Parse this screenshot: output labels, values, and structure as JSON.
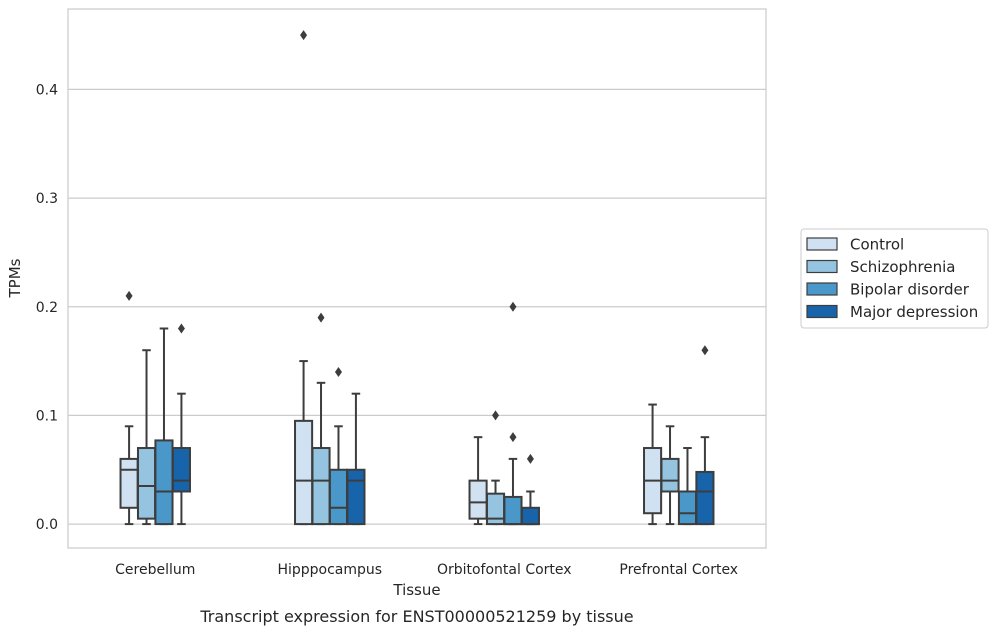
{
  "chart_data": {
    "type": "box",
    "title": "",
    "caption": "Transcript expression for ENST00000521259 by tissue",
    "xlabel": "Tissue",
    "ylabel": "TPMs",
    "ylim": [
      -0.022,
      0.474
    ],
    "yticks": [
      0.0,
      0.1,
      0.2,
      0.3,
      0.4
    ],
    "ytick_labels": [
      "0.0",
      "0.1",
      "0.2",
      "0.3",
      "0.4"
    ],
    "grid": "horizontal",
    "legend_position": "right",
    "categories": [
      "Cerebellum",
      "Hipppocampus",
      "Orbitofontal Cortex",
      "Prefrontal Cortex"
    ],
    "series": [
      {
        "name": "Control",
        "color": "#d0e1f2",
        "boxes": [
          {
            "whislo": 0.0,
            "q1": 0.015,
            "med": 0.05,
            "q3": 0.06,
            "whishi": 0.09,
            "fliers": [
              0.21
            ]
          },
          {
            "whislo": 0.0,
            "q1": 0.0,
            "med": 0.04,
            "q3": 0.095,
            "whishi": 0.15,
            "fliers": [
              0.45
            ]
          },
          {
            "whislo": 0.0,
            "q1": 0.005,
            "med": 0.02,
            "q3": 0.04,
            "whishi": 0.08,
            "fliers": []
          },
          {
            "whislo": 0.0,
            "q1": 0.01,
            "med": 0.04,
            "q3": 0.07,
            "whishi": 0.11,
            "fliers": []
          }
        ]
      },
      {
        "name": "Schizophrenia",
        "color": "#94c4df",
        "boxes": [
          {
            "whislo": 0.0,
            "q1": 0.005,
            "med": 0.035,
            "q3": 0.07,
            "whishi": 0.16,
            "fliers": []
          },
          {
            "whislo": 0.0,
            "q1": 0.0,
            "med": 0.04,
            "q3": 0.07,
            "whishi": 0.13,
            "fliers": [
              0.19
            ]
          },
          {
            "whislo": 0.0,
            "q1": 0.0,
            "med": 0.005,
            "q3": 0.028,
            "whishi": 0.04,
            "fliers": [
              0.1
            ]
          },
          {
            "whislo": 0.0,
            "q1": 0.03,
            "med": 0.04,
            "q3": 0.06,
            "whishi": 0.09,
            "fliers": []
          }
        ]
      },
      {
        "name": "Bipolar disorder",
        "color": "#4a98c9",
        "boxes": [
          {
            "whislo": 0.0,
            "q1": 0.0,
            "med": 0.03,
            "q3": 0.077,
            "whishi": 0.18,
            "fliers": []
          },
          {
            "whislo": 0.0,
            "q1": 0.0,
            "med": 0.015,
            "q3": 0.05,
            "whishi": 0.09,
            "fliers": [
              0.14
            ]
          },
          {
            "whislo": 0.0,
            "q1": 0.0,
            "med": 0.0,
            "q3": 0.025,
            "whishi": 0.06,
            "fliers": [
              0.08,
              0.2
            ]
          },
          {
            "whislo": 0.0,
            "q1": 0.0,
            "med": 0.01,
            "q3": 0.03,
            "whishi": 0.07,
            "fliers": []
          }
        ]
      },
      {
        "name": "Major depression",
        "color": "#1764ab",
        "boxes": [
          {
            "whislo": 0.0,
            "q1": 0.03,
            "med": 0.04,
            "q3": 0.07,
            "whishi": 0.12,
            "fliers": [
              0.18
            ]
          },
          {
            "whislo": 0.0,
            "q1": 0.0,
            "med": 0.04,
            "q3": 0.05,
            "whishi": 0.12,
            "fliers": []
          },
          {
            "whislo": 0.0,
            "q1": 0.0,
            "med": 0.0,
            "q3": 0.015,
            "whishi": 0.03,
            "fliers": [
              0.06
            ]
          },
          {
            "whislo": 0.0,
            "q1": 0.0,
            "med": 0.03,
            "q3": 0.048,
            "whishi": 0.08,
            "fliers": [
              0.16
            ]
          }
        ]
      }
    ]
  }
}
